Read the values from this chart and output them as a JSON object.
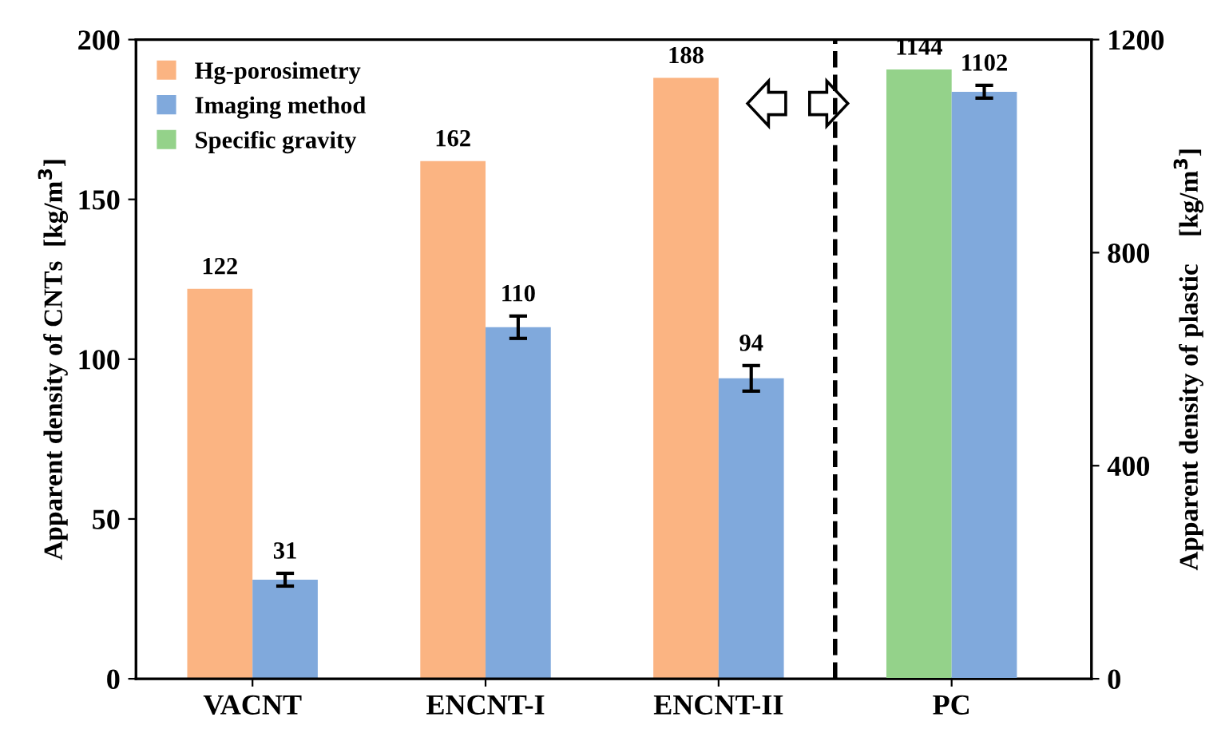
{
  "chart_data": {
    "type": "bar",
    "categories": [
      "VACNT",
      "ENCNT-I",
      "ENCNT-II",
      "PC"
    ],
    "series": [
      {
        "name": "Hg-porosimetry",
        "color": "#fbb482",
        "values": [
          122,
          162,
          188,
          null
        ]
      },
      {
        "name": "Imaging method",
        "color": "#80a9dc",
        "values": [
          31,
          110,
          94,
          null
        ],
        "errors": [
          2,
          3.5,
          4,
          null
        ]
      },
      {
        "name": "Specific gravity",
        "color": "#94d28a",
        "values": [
          null,
          null,
          null,
          1144
        ],
        "axis": "y2"
      },
      {
        "color": "#80a9dc",
        "values": [
          null,
          null,
          null,
          1102
        ],
        "axis": "y2",
        "errors": [
          null,
          null,
          null,
          12
        ]
      }
    ],
    "ylabel": "Apparent density of CNTs  [kg/m$^{3}$]",
    "y2label": "Apparent density of plastic    [kg/m$^{3}$]",
    "ylim": [
      0,
      200
    ],
    "yticks": [
      0,
      50,
      100,
      150,
      200
    ],
    "y2lim": [
      0,
      1200
    ],
    "y2ticks": [
      0,
      400,
      800,
      1200
    ],
    "data_labels": true,
    "legend": "top left",
    "grid": false
  }
}
